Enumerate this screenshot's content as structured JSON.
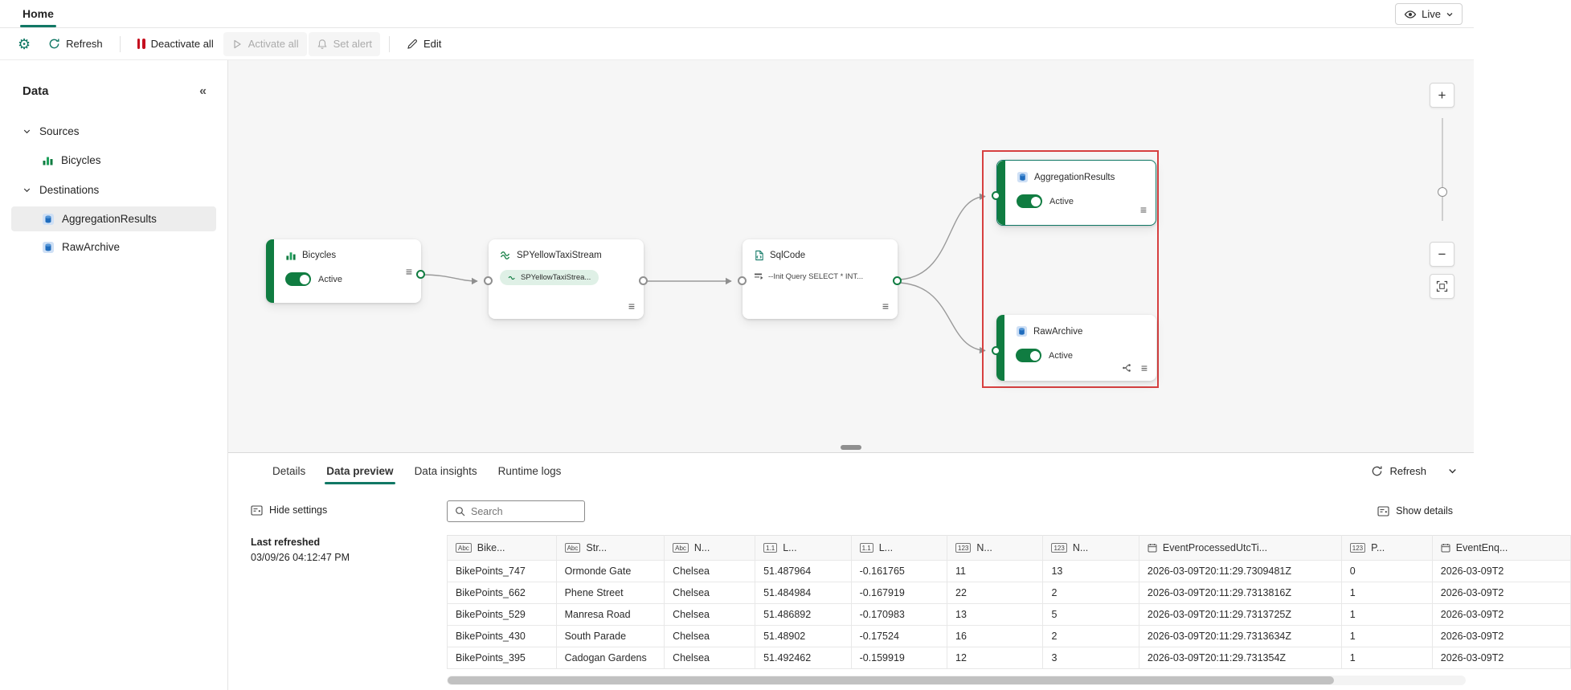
{
  "app": {
    "home_tab": "Home",
    "live_label": "Live"
  },
  "toolbar": {
    "refresh_label": "Refresh",
    "deactivate_all_label": "Deactivate all",
    "activate_all_label": "Activate all",
    "set_alert_label": "Set alert",
    "edit_label": "Edit"
  },
  "sidebar": {
    "title": "Data",
    "sections": [
      {
        "label": "Sources",
        "items": [
          {
            "label": "Bicycles"
          }
        ]
      },
      {
        "label": "Destinations",
        "items": [
          {
            "label": "AggregationResults"
          },
          {
            "label": "RawArchive"
          }
        ]
      }
    ]
  },
  "diagram": {
    "nodes": [
      {
        "label": "Bicycles",
        "status": "Active"
      },
      {
        "label": "SPYellowTaxiStream",
        "badge": "SPYellowTaxiStrea..."
      },
      {
        "label": "SqlCode",
        "subtitle": "--Init Query SELECT * INT..."
      },
      {
        "label": "AggregationResults",
        "status": "Active"
      },
      {
        "label": "RawArchive",
        "status": "Active"
      }
    ]
  },
  "zoom": {
    "zoom_in": "+",
    "zoom_out": "−"
  },
  "bottom_panel": {
    "tabs": [
      {
        "label": "Details"
      },
      {
        "label": "Data preview"
      },
      {
        "label": "Data insights"
      },
      {
        "label": "Runtime logs"
      }
    ],
    "refresh_label": "Refresh",
    "hide_settings_label": "Hide settings",
    "last_refreshed_label": "Last refreshed",
    "last_refreshed_value": "03/09/26 04:12:47 PM",
    "search_placeholder": "Search",
    "show_details_label": "Show details"
  },
  "table": {
    "columns": [
      {
        "icon": "abc",
        "label": "Bike..."
      },
      {
        "icon": "abc",
        "label": "Str..."
      },
      {
        "icon": "abc",
        "label": "N..."
      },
      {
        "icon": "decimal",
        "label": "L..."
      },
      {
        "icon": "decimal",
        "label": "L..."
      },
      {
        "icon": "int",
        "label": "N..."
      },
      {
        "icon": "int",
        "label": "N..."
      },
      {
        "icon": "datetime",
        "label": "EventProcessedUtcTi..."
      },
      {
        "icon": "int",
        "label": "P..."
      },
      {
        "icon": "datetime",
        "label": "EventEnq..."
      }
    ],
    "rows": [
      [
        "BikePoints_747",
        "Ormonde Gate",
        "Chelsea",
        "51.487964",
        "-0.161765",
        "11",
        "13",
        "2026-03-09T20:11:29.7309481Z",
        "0",
        "2026-03-09T2"
      ],
      [
        "BikePoints_662",
        "Phene Street",
        "Chelsea",
        "51.484984",
        "-0.167919",
        "22",
        "2",
        "2026-03-09T20:11:29.7313816Z",
        "1",
        "2026-03-09T2"
      ],
      [
        "BikePoints_529",
        "Manresa Road",
        "Chelsea",
        "51.486892",
        "-0.170983",
        "13",
        "5",
        "2026-03-09T20:11:29.7313725Z",
        "1",
        "2026-03-09T2"
      ],
      [
        "BikePoints_430",
        "South Parade",
        "Chelsea",
        "51.48902",
        "-0.17524",
        "16",
        "2",
        "2026-03-09T20:11:29.7313634Z",
        "1",
        "2026-03-09T2"
      ],
      [
        "BikePoints_395",
        "Cadogan Gardens",
        "Chelsea",
        "51.492462",
        "-0.159919",
        "12",
        "3",
        "2026-03-09T20:11:29.731354Z",
        "1",
        "2026-03-09T2"
      ]
    ]
  },
  "icons": {
    "gear": "⚙",
    "menu": "≡",
    "collapse_panel": "«"
  },
  "colors": {
    "accent_teal": "#117865",
    "active_green": "#107c41",
    "alert_red": "#c50f1f",
    "selection_highlight_red": "#d74040",
    "disabled_text": "#ababab"
  }
}
